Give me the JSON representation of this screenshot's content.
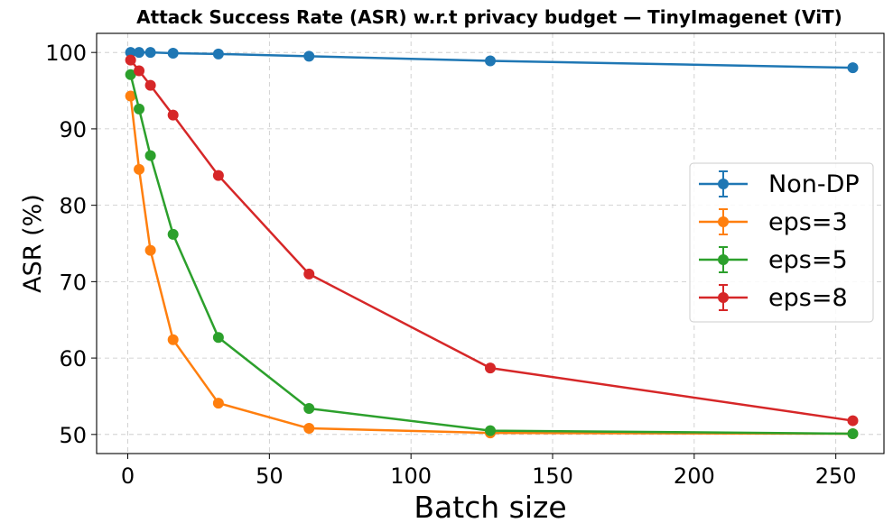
{
  "chart_data": {
    "type": "line",
    "title": "Attack Success Rate (ASR) w.r.t privacy budget — TinyImagenet (ViT)",
    "xlabel": "Batch size",
    "ylabel": "ASR (%)",
    "xlim": [
      -11,
      267
    ],
    "ylim": [
      47.5,
      102.5
    ],
    "xticks": [
      0,
      50,
      100,
      150,
      200,
      250
    ],
    "yticks": [
      50,
      60,
      70,
      80,
      90,
      100
    ],
    "grid": true,
    "legend_position": "center-right",
    "x": [
      1,
      4,
      8,
      16,
      32,
      64,
      128,
      256
    ],
    "series": [
      {
        "name": "Non-DP",
        "color": "#1f77b4",
        "values": [
          100.0,
          100.0,
          100.0,
          99.9,
          99.8,
          99.5,
          98.9,
          98.0
        ]
      },
      {
        "name": "eps=3",
        "color": "#ff7f0e",
        "values": [
          94.3,
          84.7,
          74.1,
          62.4,
          54.1,
          50.8,
          50.2,
          50.1
        ]
      },
      {
        "name": "eps=5",
        "color": "#2ca02c",
        "values": [
          97.1,
          92.6,
          86.5,
          76.2,
          62.7,
          53.4,
          50.5,
          50.1
        ]
      },
      {
        "name": "eps=8",
        "color": "#d62728",
        "values": [
          99.0,
          97.6,
          95.7,
          91.8,
          83.9,
          71.0,
          58.7,
          51.8
        ]
      }
    ]
  }
}
